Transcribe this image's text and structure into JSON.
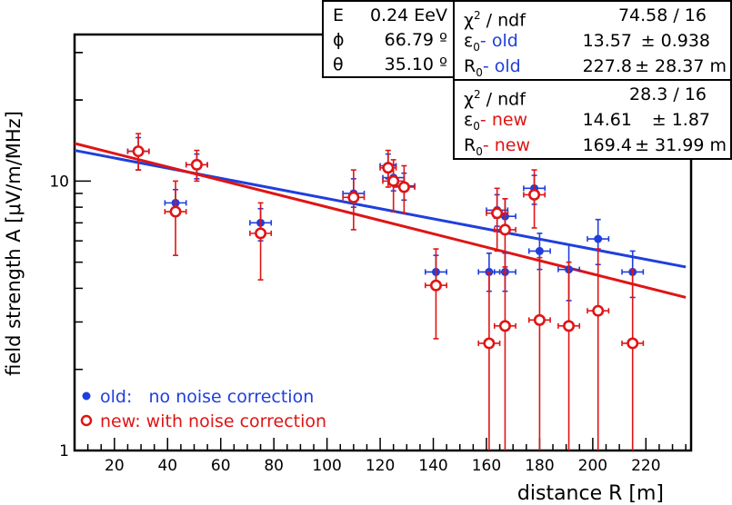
{
  "chart_data": {
    "type": "scatter",
    "xlabel": "distance R [m]",
    "ylabel": "field strength A  [μV/m/MHz]",
    "xlim": [
      5,
      237
    ],
    "ylim": [
      1,
      35
    ],
    "yscale": "log",
    "x_ticks": [
      20,
      40,
      60,
      80,
      100,
      120,
      140,
      160,
      180,
      200,
      220
    ],
    "y_tick_labels": [
      {
        "value": 1,
        "label": "1"
      },
      {
        "value": 10,
        "label": "10"
      }
    ],
    "series": [
      {
        "name": "old",
        "legend": "old:   no noise correction",
        "color": "#1f3fdc",
        "marker": "filled-circle",
        "points": [
          {
            "x": 29,
            "y": 12.9,
            "xerr": 4,
            "ylo": 11.0,
            "yhi": 14.5
          },
          {
            "x": 43,
            "y": 8.3,
            "xerr": 4,
            "ylo": 7.5,
            "yhi": 9.3
          },
          {
            "x": 51,
            "y": 11.5,
            "xerr": 4,
            "ylo": 10.2,
            "yhi": 12.6
          },
          {
            "x": 75,
            "y": 7.0,
            "xerr": 4,
            "ylo": 6.0,
            "yhi": 7.9
          },
          {
            "x": 110,
            "y": 9.0,
            "xerr": 4,
            "ylo": 8.0,
            "yhi": 10.2
          },
          {
            "x": 123,
            "y": 11.4,
            "xerr": 3,
            "ylo": 10.2,
            "yhi": 12.6
          },
          {
            "x": 125,
            "y": 10.3,
            "xerr": 4,
            "ylo": 9.2,
            "yhi": 11.5
          },
          {
            "x": 129,
            "y": 9.6,
            "xerr": 4,
            "ylo": 8.5,
            "yhi": 10.7
          },
          {
            "x": 141,
            "y": 4.6,
            "xerr": 4,
            "ylo": 4.0,
            "yhi": 5.3
          },
          {
            "x": 161,
            "y": 4.6,
            "xerr": 4,
            "ylo": 3.9,
            "yhi": 5.4
          },
          {
            "x": 164,
            "y": 7.8,
            "xerr": 4,
            "ylo": 6.8,
            "yhi": 8.9
          },
          {
            "x": 167,
            "y": 7.4,
            "xerr": 4,
            "ylo": 6.5,
            "yhi": 8.6
          },
          {
            "x": 167,
            "y": 4.6,
            "xerr": 4,
            "ylo": 3.9,
            "yhi": 5.4
          },
          {
            "x": 178,
            "y": 9.4,
            "xerr": 4,
            "ylo": 8.2,
            "yhi": 10.5
          },
          {
            "x": 180,
            "y": 5.5,
            "xerr": 4,
            "ylo": 4.7,
            "yhi": 6.4
          },
          {
            "x": 191,
            "y": 4.7,
            "xerr": 4,
            "ylo": 3.6,
            "yhi": 5.8
          },
          {
            "x": 202,
            "y": 6.1,
            "xerr": 4,
            "ylo": 4.9,
            "yhi": 7.2
          },
          {
            "x": 215,
            "y": 4.6,
            "xerr": 4,
            "ylo": 3.7,
            "yhi": 5.5
          }
        ],
        "fit": [
          {
            "x": 5,
            "y": 13.0
          },
          {
            "x": 235,
            "y": 4.8
          }
        ]
      },
      {
        "name": "new",
        "legend": "new: with noise correction",
        "color": "#e01414",
        "marker": "open-circle",
        "points": [
          {
            "x": 29,
            "y": 12.9,
            "xerr": 4,
            "ylo": 11.0,
            "yhi": 15.0
          },
          {
            "x": 43,
            "y": 7.7,
            "xerr": 4,
            "ylo": 5.3,
            "yhi": 10.0
          },
          {
            "x": 51,
            "y": 11.5,
            "xerr": 4,
            "ylo": 10.0,
            "yhi": 13.0
          },
          {
            "x": 75,
            "y": 6.4,
            "xerr": 4,
            "ylo": 4.3,
            "yhi": 8.3
          },
          {
            "x": 110,
            "y": 8.7,
            "xerr": 4,
            "ylo": 6.6,
            "yhi": 11.0
          },
          {
            "x": 123,
            "y": 11.2,
            "xerr": 3,
            "ylo": 9.5,
            "yhi": 13.0
          },
          {
            "x": 125,
            "y": 10.0,
            "xerr": 4,
            "ylo": 7.7,
            "yhi": 12.0
          },
          {
            "x": 129,
            "y": 9.5,
            "xerr": 4,
            "ylo": 7.6,
            "yhi": 11.4
          },
          {
            "x": 141,
            "y": 4.1,
            "xerr": 4,
            "ylo": 2.6,
            "yhi": 5.6
          },
          {
            "x": 161,
            "y": 2.5,
            "xerr": 4,
            "ylo": 1.0,
            "yhi": 4.6
          },
          {
            "x": 164,
            "y": 7.6,
            "xerr": 4,
            "ylo": 5.5,
            "yhi": 9.4
          },
          {
            "x": 167,
            "y": 6.6,
            "xerr": 4,
            "ylo": 4.6,
            "yhi": 8.6
          },
          {
            "x": 167,
            "y": 2.9,
            "xerr": 4,
            "ylo": 1.0,
            "yhi": 4.8
          },
          {
            "x": 178,
            "y": 8.9,
            "xerr": 4,
            "ylo": 6.7,
            "yhi": 11.0
          },
          {
            "x": 180,
            "y": 3.05,
            "xerr": 4,
            "ylo": 1.0,
            "yhi": 5.2
          },
          {
            "x": 191,
            "y": 2.9,
            "xerr": 4,
            "ylo": 1.0,
            "yhi": 5.0
          },
          {
            "x": 202,
            "y": 3.3,
            "xerr": 4,
            "ylo": 1.0,
            "yhi": 5.6
          },
          {
            "x": 215,
            "y": 2.5,
            "xerr": 4,
            "ylo": 1.0,
            "yhi": 4.7
          }
        ],
        "fit": [
          {
            "x": 5,
            "y": 13.8
          },
          {
            "x": 235,
            "y": 3.7
          }
        ]
      }
    ]
  },
  "info": {
    "event": {
      "E": {
        "label": "E",
        "value": "0.24 EeV"
      },
      "phi": {
        "label": "ϕ",
        "value": "66.79 º"
      },
      "theta": {
        "label": "θ",
        "value": "35.10 º"
      }
    },
    "old": {
      "chi_label": "χ",
      "chi_sup": "2",
      "chi_rest": " / ndf",
      "chi_value": "74.58 / 16",
      "eps_label": "ε",
      "eps_sub": "0",
      "eps_tag": "- old",
      "eps_value": "13.57",
      "eps_err": "± 0.938",
      "r_label": "R",
      "r_sub": "0",
      "r_tag": "- old",
      "r_value": "227.8",
      "r_err": "± 28.37 m"
    },
    "new": {
      "chi_label": "χ",
      "chi_sup": "2",
      "chi_rest": " / ndf",
      "chi_value": "28.3 / 16",
      "eps_label": "ε",
      "eps_sub": "0",
      "eps_tag": "- new",
      "eps_value": "14.61",
      "eps_err": "±  1.87",
      "r_label": "R",
      "r_sub": "0",
      "r_tag": "- new",
      "r_value": "169.4",
      "r_err": "± 31.99 m"
    }
  }
}
